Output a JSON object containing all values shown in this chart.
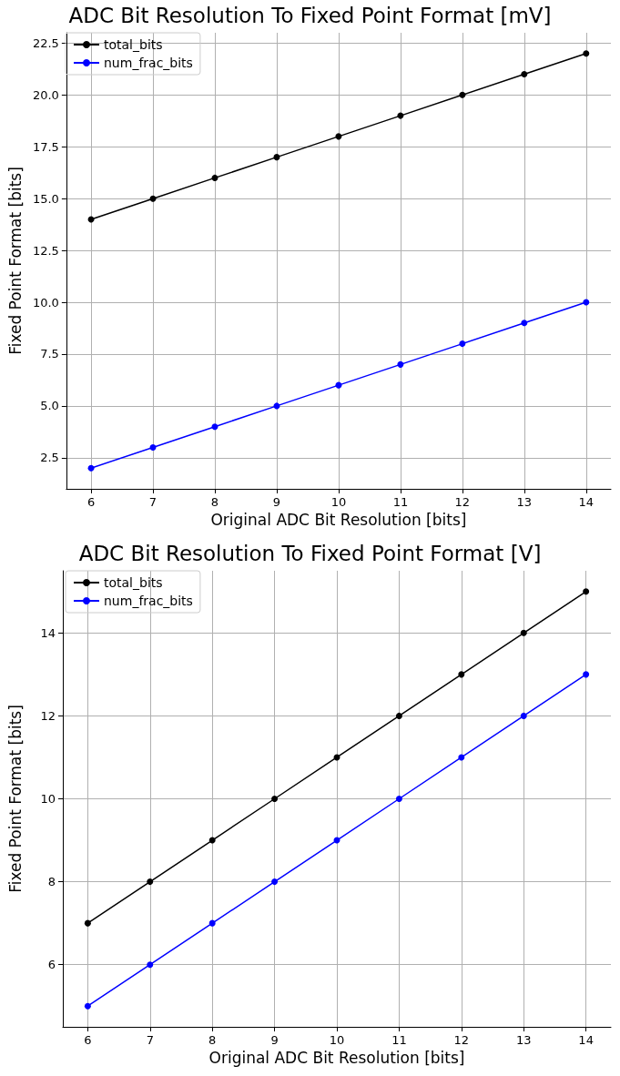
{
  "chart_data": [
    {
      "type": "line",
      "title": "ADC Bit Resolution To Fixed Point Format [mV]",
      "xlabel": "Original ADC Bit Resolution [bits]",
      "ylabel": "Fixed Point Format [bits]",
      "x": [
        6,
        7,
        8,
        9,
        10,
        11,
        12,
        13,
        14
      ],
      "series": [
        {
          "name": "total_bits",
          "color": "#000000",
          "values": [
            14,
            15,
            16,
            17,
            18,
            19,
            20,
            21,
            22
          ]
        },
        {
          "name": "num_frac_bits",
          "color": "#0000ff",
          "values": [
            2,
            3,
            4,
            5,
            6,
            7,
            8,
            9,
            10
          ]
        }
      ],
      "xlim": [
        5.6,
        14.4
      ],
      "xticks": [
        6,
        7,
        8,
        9,
        10,
        11,
        12,
        13,
        14
      ],
      "ylim": [
        1,
        23
      ],
      "yticks": [
        2.5,
        {
          "value": 5,
          "label": "5.0"
        },
        7.5,
        {
          "value": 10,
          "label": "10.0"
        },
        12.5,
        {
          "value": 15,
          "label": "15.0"
        },
        17.5,
        {
          "value": 20,
          "label": "20.0"
        },
        22.5
      ],
      "grid": true,
      "legend": "top left",
      "marker": "circle",
      "line_style": "solid"
    },
    {
      "type": "line",
      "title": "ADC Bit Resolution To Fixed Point Format [V]",
      "xlabel": "Original ADC Bit Resolution [bits]",
      "ylabel": "Fixed Point Format [bits]",
      "x": [
        6,
        7,
        8,
        9,
        10,
        11,
        12,
        13,
        14
      ],
      "series": [
        {
          "name": "total_bits",
          "color": "#000000",
          "values": [
            7,
            8,
            9,
            10,
            11,
            12,
            13,
            14,
            15
          ]
        },
        {
          "name": "num_frac_bits",
          "color": "#0000ff",
          "values": [
            5,
            6,
            7,
            8,
            9,
            10,
            11,
            12,
            13
          ]
        }
      ],
      "xlim": [
        5.6,
        14.4
      ],
      "xticks": [
        6,
        7,
        8,
        9,
        10,
        11,
        12,
        13,
        14
      ],
      "ylim": [
        4.5,
        15.5
      ],
      "yticks": [
        6,
        8,
        10,
        12,
        14
      ],
      "grid": true,
      "legend": "top left",
      "marker": "circle",
      "line_style": "solid"
    }
  ]
}
